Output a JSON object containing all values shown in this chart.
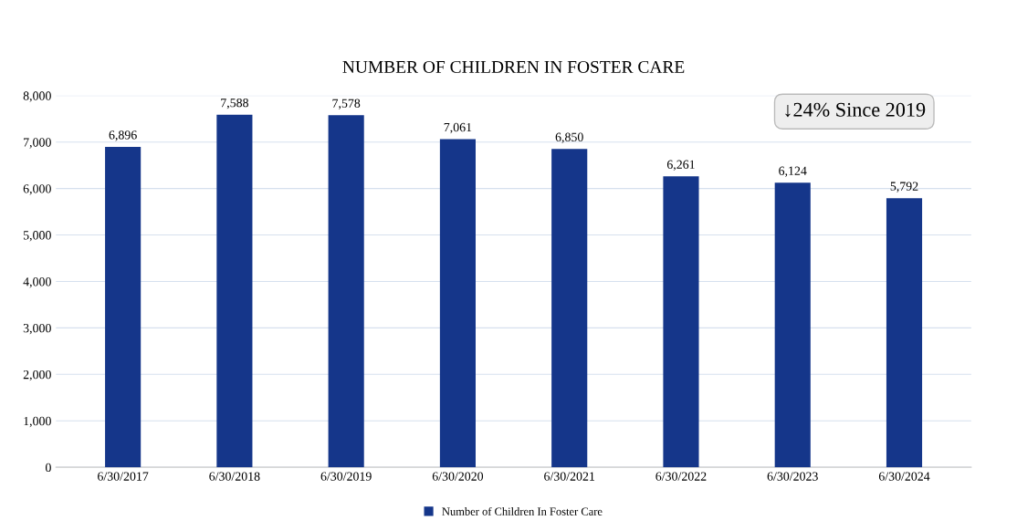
{
  "chart_data": {
    "type": "bar",
    "title": "NUMBER OF CHILDREN IN FOSTER CARE",
    "categories": [
      "6/30/2017",
      "6/30/2018",
      "6/30/2019",
      "6/30/2020",
      "6/30/2021",
      "6/30/2022",
      "6/30/2023",
      "6/30/2024"
    ],
    "series": [
      {
        "name": "Number of Children In Foster Care",
        "color": "#15368a",
        "values": [
          6896,
          7588,
          7578,
          7061,
          6850,
          6261,
          6124,
          5792
        ]
      }
    ],
    "value_labels": [
      "6,896",
      "7,588",
      "7,578",
      "7,061",
      "6,850",
      "6,261",
      "6,124",
      "5,792"
    ],
    "ylim": [
      0,
      8000
    ],
    "yticks": [
      0,
      {
        "value": 1000,
        "label": "1,000"
      },
      {
        "value": 2000,
        "label": "2,000"
      },
      {
        "value": 3000,
        "label": "3,000"
      },
      {
        "value": 4000,
        "label": "4,000"
      },
      {
        "value": 5000,
        "label": "5,000"
      },
      {
        "value": 6000,
        "label": "6,000"
      },
      {
        "value": 7000,
        "label": "7,000"
      },
      {
        "value": 8000,
        "label": "8,000"
      }
    ],
    "grid": "y",
    "legend": "bottom",
    "annotations": [
      "↓24% Since 2019"
    ]
  }
}
